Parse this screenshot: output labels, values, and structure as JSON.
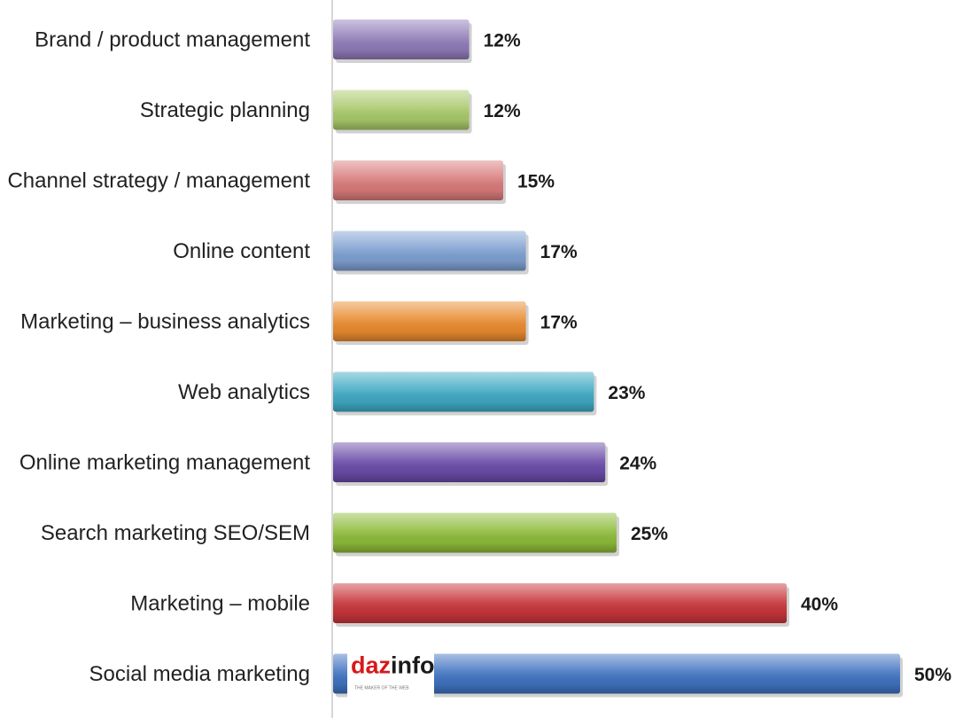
{
  "chart_data": {
    "type": "bar",
    "orientation": "horizontal",
    "categories": [
      "Brand / product management",
      "Strategic planning",
      "Channel strategy / management",
      "Online content",
      "Marketing – business analytics",
      "Web analytics",
      "Online marketing management",
      "Search marketing SEO/SEM",
      "Marketing – mobile",
      "Social media marketing"
    ],
    "values": [
      12,
      12,
      15,
      17,
      17,
      23,
      24,
      25,
      40,
      50
    ],
    "value_labels": [
      "12%",
      "12%",
      "15%",
      "17%",
      "17%",
      "23%",
      "24%",
      "25%",
      "40%",
      "50%"
    ],
    "colors": [
      "#8f7bb8",
      "#a9c96a",
      "#d97a7a",
      "#7d9fd1",
      "#e98a2e",
      "#3fa9c4",
      "#6a4ba8",
      "#8dbb3a",
      "#c7353a",
      "#3f72c0"
    ],
    "xlim": [
      0,
      50
    ],
    "grid": false,
    "legend": "none",
    "watermark": {
      "brand_left": "daz",
      "brand_right": "info",
      "tagline": "THE MAKER OF THE WEB"
    }
  }
}
